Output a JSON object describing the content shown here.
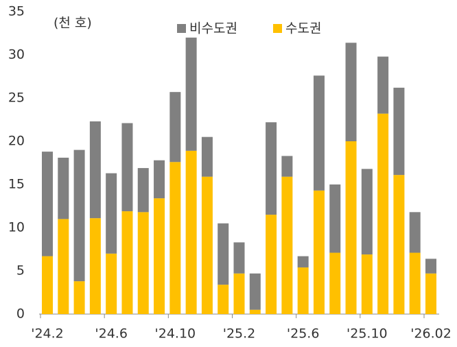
{
  "chart_data": {
    "type": "stacked_bar",
    "annotation": "(천 호)",
    "categories": [
      "'24.2",
      null,
      null,
      null,
      "'24.6",
      null,
      null,
      null,
      "'24.10",
      null,
      null,
      null,
      "'25.2",
      null,
      null,
      null,
      "'25.6",
      null,
      null,
      null,
      "'25.10",
      null,
      null,
      null,
      "'26.02"
    ],
    "series": [
      {
        "name": "비수도권",
        "color": "#808080",
        "values": [
          12.1,
          7.1,
          15.2,
          11.2,
          9.3,
          10.2,
          5.1,
          4.4,
          8.1,
          13.1,
          4.6,
          7.1,
          3.6,
          4.2,
          10.7,
          2.4,
          1.3,
          13.3,
          7.9,
          11.4,
          9.9,
          6.6,
          10.1,
          4.7,
          1.7
        ]
      },
      {
        "name": "수도권",
        "color": "#FFC000",
        "values": [
          6.7,
          11.0,
          3.8,
          11.1,
          7.0,
          11.9,
          11.8,
          13.4,
          17.6,
          18.9,
          15.9,
          3.4,
          4.7,
          0.5,
          11.5,
          15.9,
          5.4,
          14.3,
          7.1,
          20.0,
          6.9,
          23.2,
          16.1,
          7.1,
          4.7
        ]
      }
    ],
    "ylim": [
      0,
      35
    ],
    "yticks": [
      0,
      5,
      10,
      15,
      20,
      25,
      30,
      35
    ],
    "grid": false
  }
}
